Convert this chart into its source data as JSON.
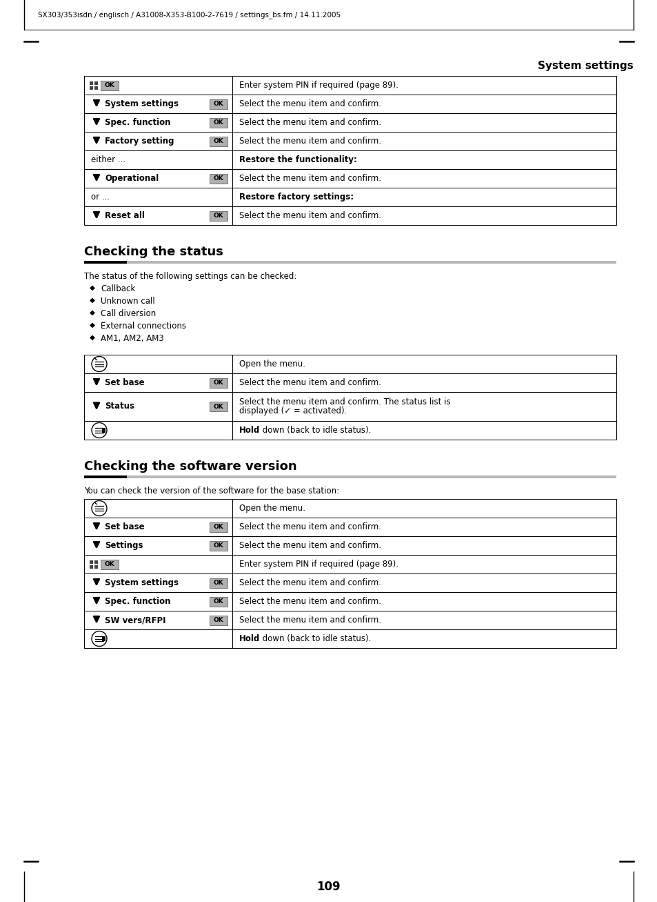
{
  "header_text": "SX303/353isdn / englisch / A31008-X353-B100-2-7619 / settings_bs.fm / 14.11.2005",
  "section_title": "System settings",
  "page_number": "109",
  "section1_heading": "Checking the status",
  "section1_intro": "The status of the following settings can be checked:",
  "section1_bullets": [
    "Callback",
    "Unknown call",
    "Call diversion",
    "External connections",
    "AM1, AM2, AM3"
  ],
  "section2_heading": "Checking the software version",
  "section2_intro": "You can check the version of the software for the base station:",
  "table1_rows": [
    {
      "type": "pin_ok",
      "right": "Enter system PIN if required (page 89)."
    },
    {
      "type": "arrow",
      "label": "System settings",
      "right": "Select the menu item and confirm.",
      "has_ok": true
    },
    {
      "type": "arrow",
      "label": "Spec. function",
      "right": "Select the menu item and confirm.",
      "has_ok": true
    },
    {
      "type": "arrow",
      "label": "Factory setting",
      "right": "Select the menu item and confirm.",
      "has_ok": true
    },
    {
      "type": "text",
      "label": "either ...",
      "right": "Restore the functionality:",
      "right_bold": true
    },
    {
      "type": "arrow",
      "label": "Operational",
      "right": "Select the menu item and confirm.",
      "has_ok": true
    },
    {
      "type": "text",
      "label": "or ...",
      "right": "Restore factory settings:",
      "right_bold": true
    },
    {
      "type": "arrow",
      "label": "Reset all",
      "right": "Select the menu item and confirm.",
      "has_ok": true
    }
  ],
  "status_table_rows": [
    {
      "type": "menu_icon",
      "right": "Open the menu."
    },
    {
      "type": "arrow",
      "label": "Set base",
      "right": "Select the menu item and confirm.",
      "has_ok": true
    },
    {
      "type": "arrow",
      "label": "Status",
      "right": "Select the menu item and confirm. The status list is\ndisplayed (✓ = activated).",
      "has_ok": true,
      "multiline": true
    },
    {
      "type": "menu_icon_hold",
      "right": "Hold down (back to idle status)."
    }
  ],
  "software_table_rows": [
    {
      "type": "menu_icon",
      "right": "Open the menu."
    },
    {
      "type": "arrow",
      "label": "Set base",
      "right": "Select the menu item and confirm.",
      "has_ok": true
    },
    {
      "type": "arrow",
      "label": "Settings",
      "right": "Select the menu item and confirm.",
      "has_ok": true
    },
    {
      "type": "pin_ok",
      "right": "Enter system PIN if required (page 89)."
    },
    {
      "type": "arrow",
      "label": "System settings",
      "right": "Select the menu item and confirm.",
      "has_ok": true
    },
    {
      "type": "arrow",
      "label": "Spec. function",
      "right": "Select the menu item and confirm.",
      "has_ok": true
    },
    {
      "type": "arrow",
      "label": "SW vers/RFPI",
      "right": "Select the menu item and confirm.",
      "has_ok": true
    },
    {
      "type": "menu_icon_hold",
      "right": "Hold down (back to idle status)."
    }
  ]
}
